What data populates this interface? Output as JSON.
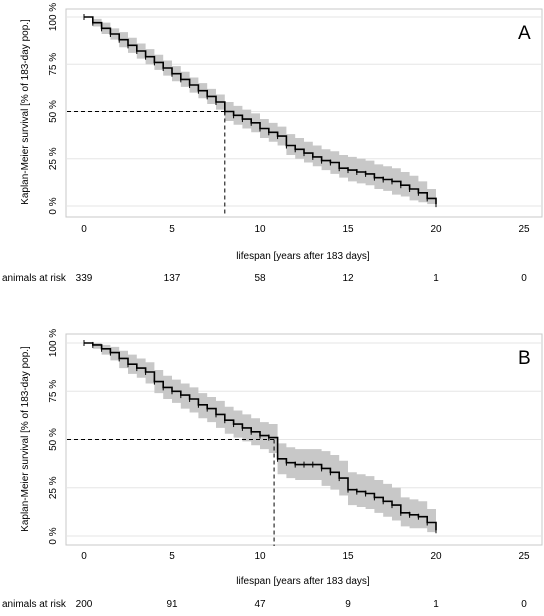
{
  "chart_data": [
    {
      "type": "line",
      "panel_label": "A",
      "xlabel": "lifespan [years after 183 days]",
      "ylabel": "Kaplan-Meier survival [% of 183-day pop.]",
      "xlim": [
        0,
        25
      ],
      "ylim": [
        0,
        100
      ],
      "x_ticks": [
        0,
        5,
        10,
        15,
        20,
        25
      ],
      "y_ticks": [
        "0 %",
        "25 %",
        "50 %",
        "75 %",
        "100 %"
      ],
      "grid": "horizontal",
      "median_survival_years": 8.0,
      "survival_curve": {
        "x": [
          0,
          0.5,
          1,
          1.5,
          2,
          2.5,
          3,
          3.5,
          4,
          4.5,
          5,
          5.5,
          6,
          6.5,
          7,
          7.5,
          8,
          8.5,
          9,
          9.5,
          10,
          10.5,
          11,
          11.5,
          12,
          12.5,
          13,
          13.5,
          14,
          14.5,
          15,
          15.5,
          16,
          16.5,
          17,
          17.5,
          18,
          18.5,
          19,
          19.5,
          20
        ],
        "y": [
          100,
          97,
          94,
          91,
          88,
          85,
          82,
          79,
          76,
          73,
          70,
          67,
          64,
          61,
          58,
          55,
          50,
          48,
          46,
          44,
          41,
          39,
          37,
          32,
          30,
          28,
          26,
          24,
          23,
          20,
          19,
          18,
          17,
          15,
          14,
          13,
          11,
          9,
          7,
          4,
          1
        ]
      },
      "ci_upper": [
        100,
        99,
        97,
        94,
        92,
        89,
        86,
        83,
        80,
        77,
        74,
        71,
        68,
        65,
        62,
        59,
        55,
        53,
        51,
        49,
        46,
        44,
        42,
        38,
        36,
        34,
        32,
        30,
        29,
        27,
        26,
        25,
        24,
        22,
        21,
        20,
        18,
        16,
        13,
        9,
        5
      ],
      "ci_lower": [
        100,
        95,
        91,
        88,
        84,
        81,
        78,
        75,
        72,
        69,
        66,
        63,
        60,
        57,
        54,
        51,
        45,
        43,
        41,
        39,
        36,
        34,
        32,
        27,
        25,
        23,
        21,
        19,
        17,
        15,
        13,
        12,
        11,
        9,
        8,
        6,
        5,
        3,
        2,
        1,
        0
      ],
      "risk_table": {
        "label": "animals at risk",
        "times": [
          0,
          5,
          10,
          15,
          20,
          25
        ],
        "counts": [
          "339",
          "137",
          "58",
          "12",
          "1",
          "0"
        ]
      }
    },
    {
      "type": "line",
      "panel_label": "B",
      "xlabel": "lifespan [years after 183 days]",
      "ylabel": "Kaplan-Meier survival [% of 183-day pop.]",
      "xlim": [
        0,
        25
      ],
      "ylim": [
        0,
        100
      ],
      "x_ticks": [
        0,
        5,
        10,
        15,
        20,
        25
      ],
      "y_ticks": [
        "0 %",
        "25 %",
        "50 %",
        "75 %",
        "100 %"
      ],
      "grid": "horizontal",
      "median_survival_years": 10.8,
      "survival_curve": {
        "x": [
          0,
          0.5,
          1,
          1.5,
          2,
          2.5,
          3,
          3.5,
          4,
          4.5,
          5,
          5.5,
          6,
          6.5,
          7,
          7.5,
          8,
          8.5,
          9,
          9.5,
          10,
          10.5,
          11,
          11.5,
          12,
          12.5,
          13,
          13.5,
          14,
          14.5,
          15,
          15.5,
          16,
          16.5,
          17,
          17.5,
          18,
          18.5,
          19,
          19.5,
          20
        ],
        "y": [
          100,
          99,
          97,
          95,
          92,
          89,
          87,
          85,
          80,
          77,
          75,
          73,
          71,
          68,
          66,
          63,
          60,
          58,
          56,
          54,
          52,
          51,
          40,
          38,
          37,
          37,
          37,
          35,
          33,
          30,
          24,
          23,
          22,
          20,
          18,
          16,
          12,
          11,
          10,
          7,
          3
        ]
      },
      "ci_upper": [
        100,
        100,
        99,
        98,
        96,
        94,
        92,
        90,
        86,
        83,
        81,
        79,
        77,
        74,
        72,
        70,
        67,
        65,
        63,
        61,
        59,
        58,
        48,
        46,
        45,
        45,
        45,
        44,
        42,
        39,
        33,
        32,
        31,
        29,
        27,
        25,
        20,
        19,
        18,
        14,
        8
      ],
      "ci_lower": [
        100,
        97,
        94,
        91,
        87,
        84,
        82,
        79,
        74,
        71,
        69,
        66,
        64,
        61,
        59,
        56,
        53,
        51,
        49,
        47,
        45,
        43,
        32,
        30,
        29,
        29,
        29,
        26,
        24,
        21,
        16,
        15,
        14,
        12,
        10,
        8,
        5,
        4,
        4,
        2,
        0
      ],
      "risk_table": {
        "label": "animals at risk",
        "times": [
          0,
          5,
          10,
          15,
          20,
          25
        ],
        "counts": [
          "200",
          "91",
          "47",
          "9",
          "1",
          "0"
        ]
      }
    }
  ]
}
